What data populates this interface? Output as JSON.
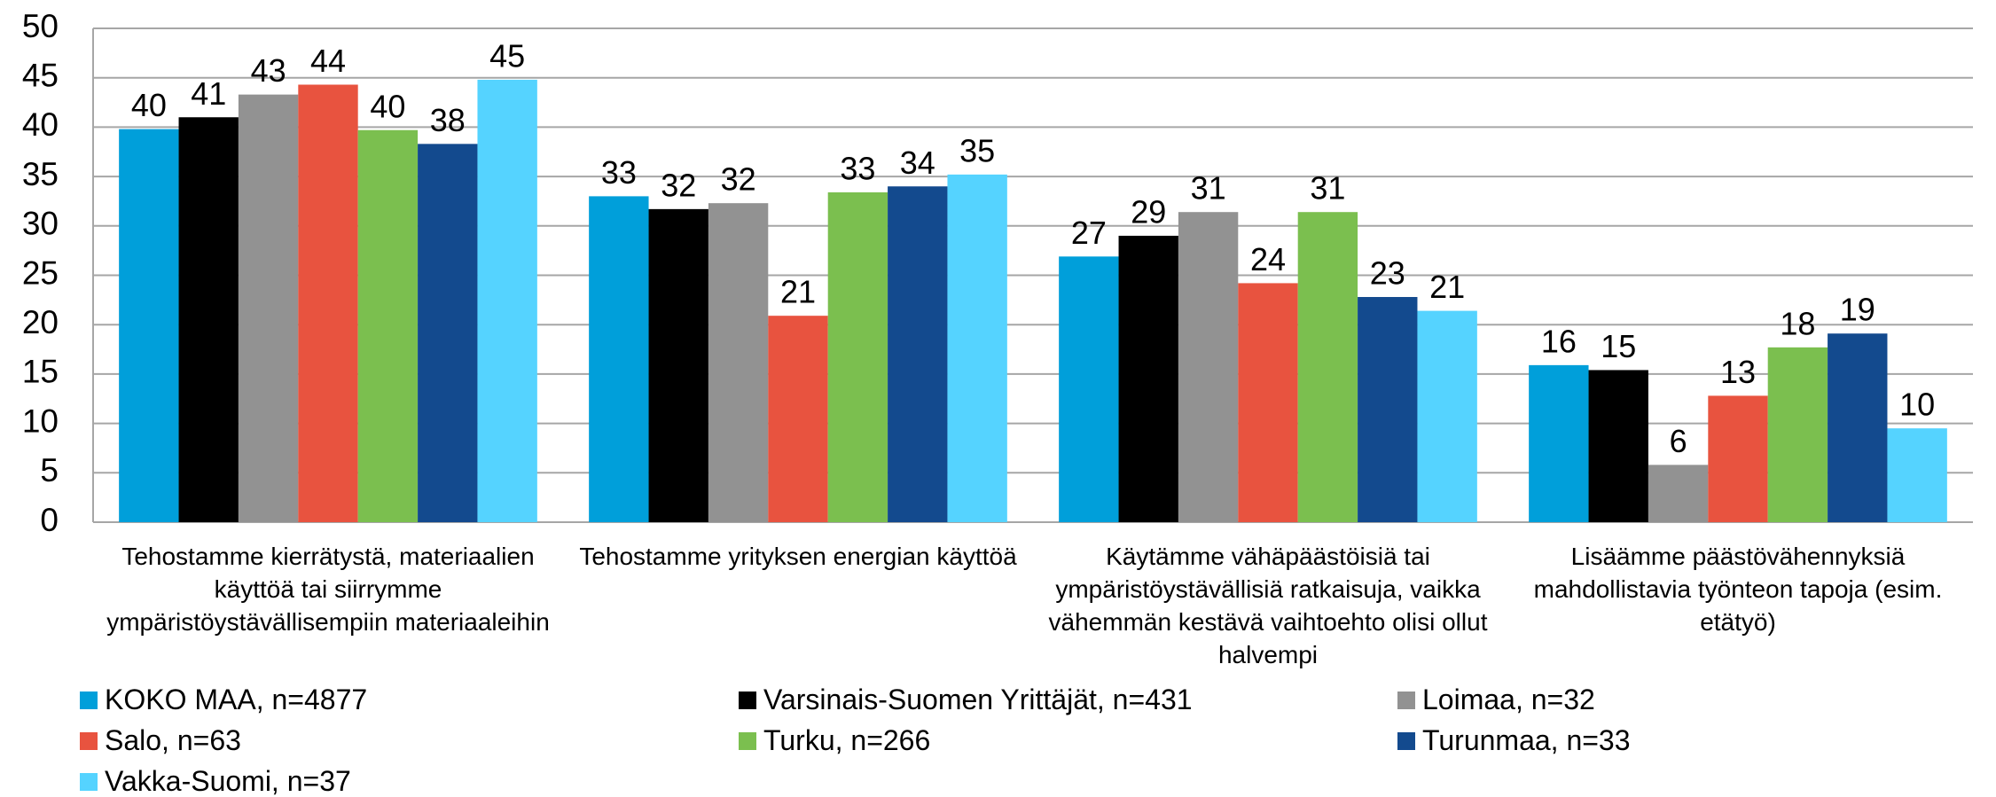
{
  "chart_data": {
    "type": "bar",
    "categories": [
      "Tehostamme kierrätystä, materiaalien käyttöä tai siirrymme ympäristöystävällisempiin materiaaleihin",
      "Tehostamme yrityksen energian käyttöä",
      "Käytämme vähäpäästöisiä tai ympäristöystävällisiä ratkaisuja, vaikka vähemmän kestävä vaihtoehto olisi ollut halvempi",
      "Lisäämme päästövähennyksiä mahdollistavia työnteon tapoja (esim. etätyö)"
    ],
    "series": [
      {
        "name": "KOKO MAA, n=4877",
        "color": "#009fda",
        "values": [
          39.8,
          33.0,
          26.9,
          15.9
        ],
        "value_labels": [
          "40",
          "33",
          "27",
          "16"
        ]
      },
      {
        "name": "Varsinais-Suomen Yrittäjät, n=431",
        "color": "#000000",
        "values": [
          41.0,
          31.7,
          29.0,
          15.4
        ],
        "value_labels": [
          "41",
          "32",
          "29",
          "15"
        ]
      },
      {
        "name": "Loimaa, n=32",
        "color": "#929292",
        "values": [
          43.3,
          32.3,
          31.4,
          5.8
        ],
        "value_labels": [
          "43",
          "32",
          "31",
          "6"
        ]
      },
      {
        "name": "Salo, n=63",
        "color": "#e8533f",
        "values": [
          44.3,
          20.9,
          24.2,
          12.8
        ],
        "value_labels": [
          "44",
          "21",
          "24",
          "13"
        ]
      },
      {
        "name": "Turku, n=266",
        "color": "#7bbf4f",
        "values": [
          39.7,
          33.4,
          31.4,
          17.7
        ],
        "value_labels": [
          "40",
          "33",
          "31",
          "18"
        ]
      },
      {
        "name": "Turunmaa, n=33",
        "color": "#134a8e",
        "values": [
          38.3,
          34.0,
          22.8,
          19.1
        ],
        "value_labels": [
          "38",
          "34",
          "23",
          "19"
        ]
      },
      {
        "name": "Vakka-Suomi, n=37",
        "color": "#55d3ff",
        "values": [
          44.8,
          35.2,
          21.4,
          9.5
        ],
        "value_labels": [
          "45",
          "35",
          "21",
          "10"
        ]
      }
    ],
    "ylim": [
      0,
      50
    ],
    "yticks": [
      0,
      5,
      10,
      15,
      20,
      25,
      30,
      35,
      40,
      45,
      50
    ],
    "grid": true
  }
}
